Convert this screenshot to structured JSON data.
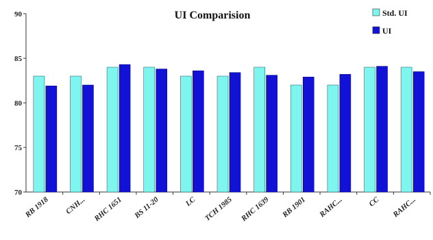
{
  "chart_data": {
    "type": "bar",
    "title": "UI Comparision",
    "xlabel": "",
    "ylabel": "",
    "categories": [
      "RB 1918",
      "CNH...",
      "RHC 1651",
      "BS 11-20",
      "LC",
      "TCH 1985",
      "RHC 1639",
      "RB 1901",
      "RAHC...",
      "CC",
      "RAHC..."
    ],
    "series": [
      {
        "name": "Std. UI",
        "color": "#7ff5ef",
        "values": [
          83,
          83,
          84,
          84,
          83,
          83,
          84,
          82,
          82,
          84,
          84
        ]
      },
      {
        "name": "UI",
        "color": "#1212d6",
        "values": [
          81.9,
          82.0,
          84.3,
          83.8,
          83.6,
          83.4,
          83.1,
          82.9,
          83.2,
          84.1,
          83.5
        ]
      }
    ],
    "ylim": [
      70,
      90
    ],
    "yticks": [
      70,
      75,
      80,
      85,
      90
    ],
    "grid": false,
    "legend": "top-right"
  }
}
